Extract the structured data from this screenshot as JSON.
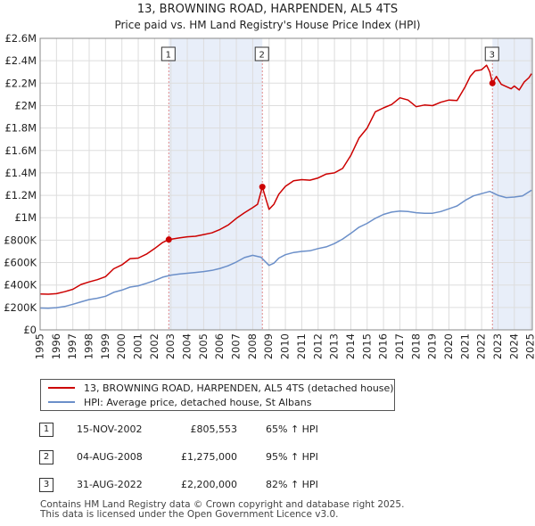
{
  "chart_data": {
    "type": "line",
    "title": "13, BROWNING ROAD, HARPENDEN, AL5 4TS",
    "subtitle": "Price paid vs. HM Land Registry's House Price Index (HPI)",
    "xlim": [
      1995,
      2025.1
    ],
    "ylim": [
      0,
      2600000
    ],
    "x_ticks": [
      1995,
      1996,
      1997,
      1998,
      1999,
      2000,
      2001,
      2002,
      2003,
      2004,
      2005,
      2006,
      2007,
      2008,
      2009,
      2010,
      2011,
      2012,
      2013,
      2014,
      2015,
      2016,
      2017,
      2018,
      2019,
      2020,
      2021,
      2022,
      2023,
      2024,
      2025
    ],
    "y_ticks": [
      {
        "value": 0,
        "label": "£0"
      },
      {
        "value": 200000,
        "label": "£200K"
      },
      {
        "value": 400000,
        "label": "£400K"
      },
      {
        "value": 600000,
        "label": "£600K"
      },
      {
        "value": 800000,
        "label": "£800K"
      },
      {
        "value": 1000000,
        "label": "£1M"
      },
      {
        "value": 1200000,
        "label": "£1.2M"
      },
      {
        "value": 1400000,
        "label": "£1.4M"
      },
      {
        "value": 1600000,
        "label": "£1.6M"
      },
      {
        "value": 1800000,
        "label": "£1.8M"
      },
      {
        "value": 2000000,
        "label": "£2M"
      },
      {
        "value": 2200000,
        "label": "£2.2M"
      },
      {
        "value": 2400000,
        "label": "£2.4M"
      },
      {
        "value": 2600000,
        "label": "£2.6M"
      }
    ],
    "shaded_periods": [
      [
        2002.87,
        2008.59
      ],
      [
        2022.66,
        2025.1
      ]
    ],
    "series": [
      {
        "name": "13, BROWNING ROAD, HARPENDEN, AL5 4TS (detached house)",
        "color": "#cc0000",
        "x": [
          1995,
          1995.5,
          1996,
          1996.5,
          1997,
          1997.5,
          1998,
          1998.5,
          1999,
          1999.5,
          2000,
          2000.5,
          2001,
          2001.5,
          2002,
          2002.5,
          2002.87,
          2003.5,
          2004,
          2004.5,
          2005,
          2005.5,
          2006,
          2006.5,
          2007,
          2007.5,
          2008,
          2008.3,
          2008.59,
          2008.8,
          2009,
          2009.3,
          2009.6,
          2010,
          2010.5,
          2011,
          2011.5,
          2012,
          2012.5,
          2013,
          2013.5,
          2014,
          2014.5,
          2015,
          2015.5,
          2016,
          2016.5,
          2017,
          2017.5,
          2018,
          2018.5,
          2019,
          2019.5,
          2020,
          2020.5,
          2021,
          2021.3,
          2021.6,
          2022,
          2022.3,
          2022.5,
          2022.66,
          2022.9,
          2023.2,
          2023.5,
          2023.8,
          2024,
          2024.3,
          2024.6,
          2024.9,
          2025.05
        ],
        "values": [
          320000,
          318000,
          323000,
          340000,
          362000,
          405000,
          428000,
          448000,
          475000,
          545000,
          580000,
          635000,
          640000,
          675000,
          725000,
          780000,
          805553,
          820000,
          830000,
          835000,
          850000,
          865000,
          895000,
          935000,
          995000,
          1045000,
          1090000,
          1120000,
          1275000,
          1170000,
          1075000,
          1120000,
          1210000,
          1280000,
          1330000,
          1340000,
          1335000,
          1355000,
          1390000,
          1400000,
          1440000,
          1555000,
          1710000,
          1800000,
          1945000,
          1980000,
          2010000,
          2070000,
          2050000,
          1990000,
          2005000,
          2000000,
          2030000,
          2050000,
          2045000,
          2170000,
          2260000,
          2310000,
          2320000,
          2360000,
          2300000,
          2200000,
          2260000,
          2190000,
          2170000,
          2150000,
          2175000,
          2140000,
          2210000,
          2250000,
          2285000
        ]
      },
      {
        "name": "HPI: Average price, detached house, St Albans",
        "color": "#6b8fc9",
        "x": [
          1995,
          1995.5,
          1996,
          1996.5,
          1997,
          1997.5,
          1998,
          1998.5,
          1999,
          1999.5,
          2000,
          2000.5,
          2001,
          2001.5,
          2002,
          2002.5,
          2003,
          2003.5,
          2004,
          2004.5,
          2005,
          2005.5,
          2006,
          2006.5,
          2007,
          2007.5,
          2008,
          2008.5,
          2009,
          2009.3,
          2009.6,
          2010,
          2010.5,
          2011,
          2011.5,
          2012,
          2012.5,
          2013,
          2013.5,
          2014,
          2014.5,
          2015,
          2015.5,
          2016,
          2016.5,
          2017,
          2017.5,
          2018,
          2018.5,
          2019,
          2019.5,
          2020,
          2020.5,
          2021,
          2021.5,
          2022,
          2022.5,
          2023,
          2023.5,
          2024,
          2024.5,
          2025.05
        ],
        "values": [
          195000,
          193000,
          198000,
          208000,
          228000,
          250000,
          270000,
          282000,
          300000,
          335000,
          355000,
          382000,
          393000,
          415000,
          440000,
          470000,
          488000,
          498000,
          505000,
          512000,
          520000,
          530000,
          548000,
          572000,
          605000,
          645000,
          665000,
          648000,
          575000,
          595000,
          640000,
          670000,
          690000,
          700000,
          705000,
          725000,
          740000,
          770000,
          810000,
          860000,
          915000,
          950000,
          995000,
          1030000,
          1050000,
          1060000,
          1055000,
          1045000,
          1040000,
          1040000,
          1055000,
          1080000,
          1105000,
          1155000,
          1195000,
          1215000,
          1235000,
          1200000,
          1180000,
          1185000,
          1195000,
          1245000
        ]
      }
    ],
    "sales": [
      {
        "label": "1",
        "x": 2002.87,
        "value": 805553,
        "line_color": "#e08a8a"
      },
      {
        "label": "2",
        "x": 2008.59,
        "value": 1275000,
        "line_color": "#e08a8a"
      },
      {
        "label": "3",
        "x": 2022.66,
        "value": 2200000,
        "line_color": "#e08a8a"
      }
    ]
  },
  "sales_table": [
    {
      "num": "1",
      "date": "15-NOV-2002",
      "price": "£805,553",
      "hpi": "65% ↑ HPI"
    },
    {
      "num": "2",
      "date": "04-AUG-2008",
      "price": "£1,275,000",
      "hpi": "95% ↑ HPI"
    },
    {
      "num": "3",
      "date": "31-AUG-2022",
      "price": "£2,200,000",
      "hpi": "82% ↑ HPI"
    }
  ],
  "legend": {
    "property": "13, BROWNING ROAD, HARPENDEN, AL5 4TS (detached house)",
    "hpi": "HPI: Average price, detached house, St Albans"
  },
  "footer": {
    "line1": "Contains HM Land Registry data © Crown copyright and database right 2025.",
    "line2": "This data is licensed under the Open Government Licence v3.0."
  }
}
